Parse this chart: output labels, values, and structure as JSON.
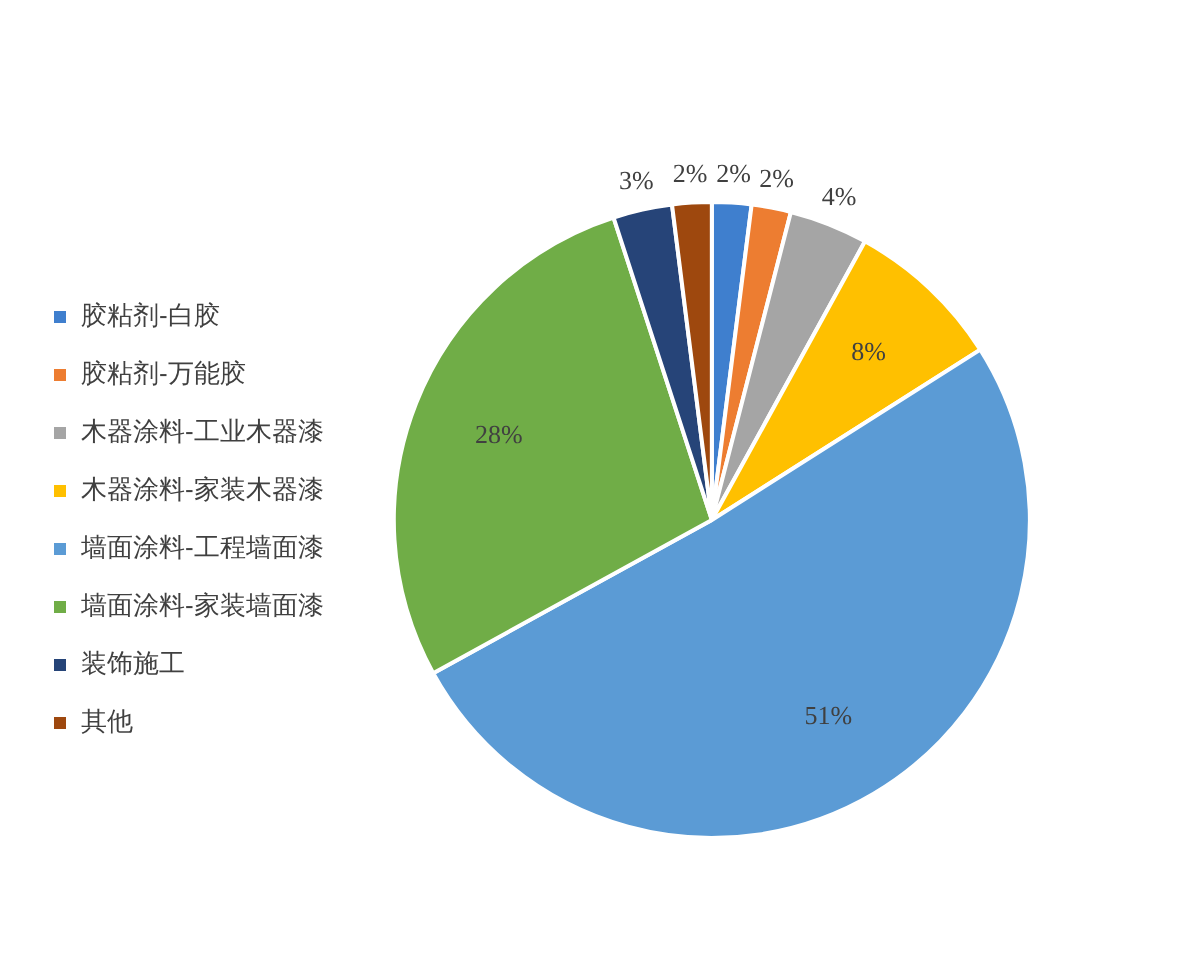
{
  "chart_data": {
    "type": "pie",
    "categories": [
      "胶粘剂-白胶",
      "胶粘剂-万能胶",
      "木器涂料-工业木器漆",
      "木器涂料-家装木器漆",
      "墙面涂料-工程墙面漆",
      "墙面涂料-家装墙面漆",
      "装饰施工",
      "其他"
    ],
    "values": [
      2,
      2,
      4,
      8,
      51,
      28,
      3,
      2
    ],
    "colors": [
      "#3f7fce",
      "#ed7d31",
      "#a5a5a5",
      "#ffc000",
      "#5b9bd5",
      "#70ad47",
      "#264478",
      "#9e480e"
    ],
    "value_labels": [
      "2%",
      "2%",
      "4%",
      "8%",
      "51%",
      "28%",
      "3%",
      "2%"
    ],
    "legend": "left"
  }
}
